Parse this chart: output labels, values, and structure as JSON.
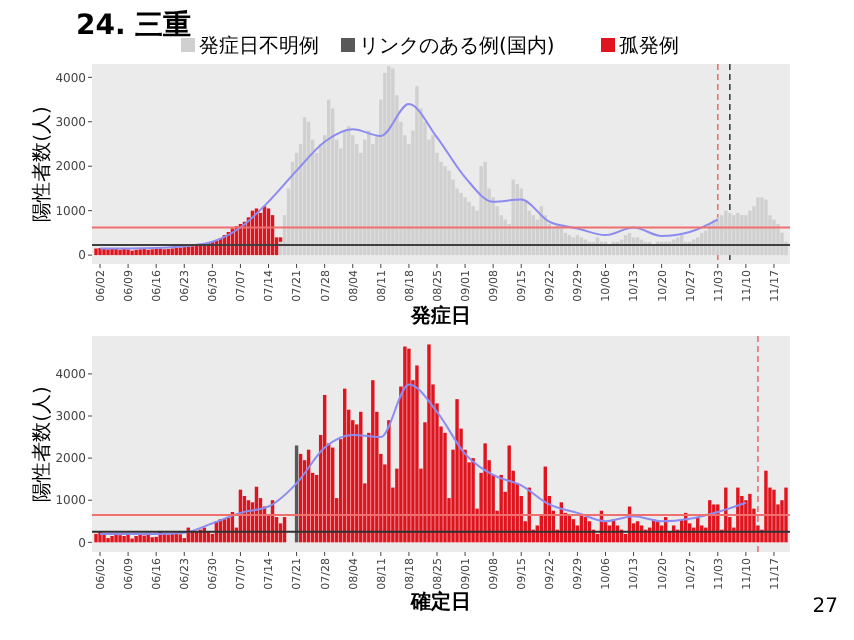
{
  "chart_data": [
    {
      "type": "bar",
      "title": "24. 三重",
      "xlabel": "発症日",
      "ylabel": "陽性者数(人)",
      "stacked": true,
      "legend": "top",
      "x": [
        "--06-01",
        "--06-02",
        "--06-03",
        "--06-04",
        "--06-05",
        "--06-06",
        "--06-07",
        "--06-08",
        "--06-09",
        "--06-10",
        "--06-11",
        "--06-12",
        "--06-13",
        "--06-14",
        "--06-15",
        "--06-16",
        "--06-17",
        "--06-18",
        "--06-19",
        "--06-20",
        "--06-21",
        "--06-22",
        "--06-23",
        "--06-24",
        "--06-25",
        "--06-26",
        "--06-27",
        "--06-28",
        "--06-29",
        "--06-30",
        "--07-01",
        "--07-02",
        "--07-03",
        "--07-04",
        "--07-05",
        "--07-06",
        "--07-07",
        "--07-08",
        "--07-09",
        "--07-10",
        "--07-11",
        "--07-12",
        "--07-13",
        "--07-14",
        "--07-15",
        "--07-16",
        "--07-17",
        "--07-18",
        "--07-19",
        "--07-20",
        "--07-21",
        "--07-22",
        "--07-23",
        "--07-24",
        "--07-25",
        "--07-26",
        "--07-27",
        "--07-28",
        "--07-29",
        "--07-30",
        "--07-31",
        "--08-01",
        "--08-02",
        "--08-03",
        "--08-04",
        "--08-05",
        "--08-06",
        "--08-07",
        "--08-08",
        "--08-09",
        "--08-10",
        "--08-11",
        "--08-12",
        "--08-13",
        "--08-14",
        "--08-15",
        "--08-16",
        "--08-17",
        "--08-18",
        "--08-19",
        "--08-20",
        "--08-21",
        "--08-22",
        "--08-23",
        "--08-24",
        "--08-25",
        "--08-26",
        "--08-27",
        "--08-28",
        "--08-29",
        "--08-30",
        "--08-31",
        "--09-01",
        "--09-02",
        "--09-03",
        "--09-04",
        "--09-05",
        "--09-06",
        "--09-07",
        "--09-08",
        "--09-09",
        "--09-10",
        "--09-11",
        "--09-12",
        "--09-13",
        "--09-14",
        "--09-15",
        "--09-16",
        "--09-17",
        "--09-18",
        "--09-19",
        "--09-20",
        "--09-21",
        "--09-22",
        "--09-23",
        "--09-24",
        "--09-25",
        "--09-26",
        "--09-27",
        "--09-28",
        "--09-29",
        "--09-30",
        "--10-01",
        "--10-02",
        "--10-03",
        "--10-04",
        "--10-05",
        "--10-06",
        "--10-07",
        "--10-08",
        "--10-09",
        "--10-10",
        "--10-11",
        "--10-12",
        "--10-13",
        "--10-14",
        "--10-15",
        "--10-16",
        "--10-17",
        "--10-18",
        "--10-19",
        "--10-20",
        "--10-21",
        "--10-22",
        "--10-23",
        "--10-24",
        "--10-25",
        "--10-26",
        "--10-27",
        "--10-28",
        "--10-29",
        "--10-30",
        "--10-31",
        "--11-01",
        "--11-02",
        "--11-03",
        "--11-04",
        "--11-05",
        "--11-06",
        "--11-07",
        "--11-08",
        "--11-09",
        "--11-10",
        "--11-11",
        "--11-12",
        "--11-13",
        "--11-14",
        "--11-15",
        "--11-16",
        "--11-17",
        "--11-18",
        "--11-19",
        "--11-20"
      ],
      "series": [
        {
          "name": "発症日不明例",
          "color": "#d0d0d0",
          "values": [
            null,
            null,
            null,
            null,
            null,
            null,
            null,
            null,
            null,
            null,
            null,
            null,
            null,
            null,
            null,
            null,
            null,
            null,
            null,
            null,
            null,
            null,
            null,
            null,
            null,
            null,
            null,
            null,
            null,
            null,
            null,
            null,
            null,
            null,
            null,
            null,
            null,
            null,
            null,
            null,
            null,
            null,
            null,
            null,
            null,
            null,
            300,
            900,
            1500,
            2100,
            2300,
            2500,
            3100,
            3000,
            2600,
            2300,
            2500,
            2700,
            3500,
            3300,
            2600,
            2400,
            2800,
            2900,
            2700,
            2500,
            2300,
            2600,
            2800,
            2500,
            2700,
            3500,
            4100,
            4250,
            4200,
            3600,
            3000,
            2700,
            2500,
            2800,
            3800,
            3300,
            3000,
            2600,
            2700,
            2300,
            2100,
            2000,
            1900,
            1700,
            1500,
            1400,
            1300,
            1200,
            1100,
            1000,
            2000,
            2100,
            1500,
            1300,
            1100,
            900,
            800,
            700,
            1700,
            1600,
            1500,
            1200,
            1000,
            900,
            800,
            1100,
            900,
            700,
            600,
            700,
            600,
            500,
            450,
            400,
            450,
            400,
            350,
            300,
            300,
            400,
            300,
            300,
            250,
            300,
            300,
            350,
            450,
            500,
            400,
            400,
            350,
            300,
            300,
            250,
            300,
            300,
            300,
            300,
            350,
            400,
            450,
            300,
            300,
            350,
            400,
            500,
            550,
            700,
            800,
            850,
            900,
            1000,
            950,
            900,
            950,
            900,
            900,
            1000,
            1100,
            1300,
            1300,
            1250,
            900,
            800,
            700,
            500,
            300
          ]
        },
        {
          "name": "孤発例",
          "color": "#e0141e",
          "values": [
            150,
            160,
            140,
            130,
            150,
            140,
            120,
            150,
            130,
            100,
            120,
            130,
            140,
            120,
            130,
            140,
            150,
            130,
            140,
            150,
            160,
            170,
            180,
            190,
            200,
            220,
            240,
            260,
            280,
            300,
            320,
            380,
            450,
            520,
            600,
            650,
            700,
            750,
            850,
            1000,
            1050,
            950,
            1100,
            1050,
            900,
            400,
            100,
            null,
            null,
            null,
            null,
            null,
            null,
            null,
            null,
            null,
            null,
            null,
            null,
            null,
            null,
            null,
            null,
            null,
            null,
            null,
            null,
            null,
            null,
            null,
            null,
            null,
            null,
            null,
            null,
            null,
            null,
            null,
            null,
            null,
            null,
            null,
            null,
            null,
            null,
            null,
            null,
            null,
            null,
            null,
            null,
            null,
            null,
            null,
            null,
            null,
            null,
            null,
            null,
            null,
            null,
            null,
            null,
            null,
            null,
            null,
            null,
            null,
            null,
            null,
            null,
            null,
            null,
            null,
            null,
            null,
            null,
            null,
            null,
            null,
            null,
            null,
            null,
            null,
            null,
            null,
            null,
            null,
            null,
            null,
            null,
            null,
            null,
            null,
            null,
            null,
            null,
            null,
            null,
            null,
            null,
            null,
            null,
            null,
            null,
            null,
            null,
            null,
            null,
            null,
            null,
            null,
            null,
            null,
            null,
            null,
            null,
            null,
            null,
            null,
            null,
            null,
            null,
            null,
            null,
            null,
            null,
            null,
            null,
            null,
            null,
            null,
            null
          ]
        },
        {
          "type": "line",
          "color": "#8c8cf0",
          "x": [
            "--06-02",
            "--06-09",
            "--06-16",
            "--06-23",
            "--06-30",
            "--07-07",
            "--07-14",
            "--07-21",
            "--07-28",
            "--08-04",
            "--08-11",
            "--08-18",
            "--08-25",
            "--09-01",
            "--09-08",
            "--09-15",
            "--09-22",
            "--09-29",
            "--10-06",
            "--10-13",
            "--10-20",
            "--10-27",
            "--11-03"
          ],
          "values": [
            150,
            150,
            160,
            200,
            300,
            620,
            1200,
            1900,
            2550,
            2830,
            2680,
            3400,
            2650,
            1750,
            1200,
            1250,
            750,
            600,
            450,
            620,
            430,
            520,
            800
          ]
        }
      ],
      "xlim": [
        "--05-31",
        "--11-21"
      ],
      "ylim": [
        -200,
        4300
      ],
      "yticks": [
        0,
        1000,
        2000,
        3000,
        4000
      ],
      "xticks": [
        {
          "value": "--06-02",
          "label": "06/02"
        },
        {
          "value": "--06-09",
          "label": "06/09"
        },
        {
          "value": "--06-16",
          "label": "06/16"
        },
        {
          "value": "--06-23",
          "label": "06/23"
        },
        {
          "value": "--06-30",
          "label": "06/30"
        },
        {
          "value": "--07-07",
          "label": "07/07"
        },
        {
          "value": "--07-14",
          "label": "07/14"
        },
        {
          "value": "--07-21",
          "label": "07/21"
        },
        {
          "value": "--07-28",
          "label": "07/28"
        },
        {
          "value": "--08-04",
          "label": "08/04"
        },
        {
          "value": "--08-11",
          "label": "08/11"
        },
        {
          "value": "--08-18",
          "label": "08/18"
        },
        {
          "value": "--08-25",
          "label": "08/25"
        },
        {
          "value": "--09-01",
          "label": "09/01"
        },
        {
          "value": "--09-08",
          "label": "09/08"
        },
        {
          "value": "--09-15",
          "label": "09/15"
        },
        {
          "value": "--09-22",
          "label": "09/22"
        },
        {
          "value": "--09-29",
          "label": "09/29"
        },
        {
          "value": "--10-06",
          "label": "10/06"
        },
        {
          "value": "--10-13",
          "label": "10/13"
        },
        {
          "value": "--10-20",
          "label": "10/20"
        },
        {
          "value": "--10-27",
          "label": "10/27"
        },
        {
          "value": "--11-03",
          "label": "11/03"
        },
        {
          "value": "--11-10",
          "label": "11/10"
        },
        {
          "value": "--11-17",
          "label": "11/17"
        }
      ],
      "ref_lines": [
        {
          "axis": "y",
          "value": 620,
          "color": "#f07070"
        },
        {
          "axis": "y",
          "value": 230,
          "color": "#404040"
        },
        {
          "axis": "x",
          "value": "--11-03",
          "color": "#f07070",
          "line_style": "dashed"
        },
        {
          "axis": "x",
          "value": "--11-06",
          "color": "#404040",
          "line_style": "dashed"
        }
      ]
    },
    {
      "type": "bar",
      "xlabel": "確定日",
      "ylabel": "陽性者数(人)",
      "stacked": true,
      "annotations": [
        "27"
      ],
      "x": [
        "--06-01",
        "--06-02",
        "--06-03",
        "--06-04",
        "--06-05",
        "--06-06",
        "--06-07",
        "--06-08",
        "--06-09",
        "--06-10",
        "--06-11",
        "--06-12",
        "--06-13",
        "--06-14",
        "--06-15",
        "--06-16",
        "--06-17",
        "--06-18",
        "--06-19",
        "--06-20",
        "--06-21",
        "--06-22",
        "--06-23",
        "--06-24",
        "--06-25",
        "--06-26",
        "--06-27",
        "--06-28",
        "--06-29",
        "--06-30",
        "--07-01",
        "--07-02",
        "--07-03",
        "--07-04",
        "--07-05",
        "--07-06",
        "--07-07",
        "--07-08",
        "--07-09",
        "--07-10",
        "--07-11",
        "--07-12",
        "--07-13",
        "--07-14",
        "--07-15",
        "--07-16",
        "--07-17",
        "--07-18",
        "--07-19",
        "--07-20",
        "--07-21",
        "--07-22",
        "--07-23",
        "--07-24",
        "--07-25",
        "--07-26",
        "--07-27",
        "--07-28",
        "--07-29",
        "--07-30",
        "--07-31",
        "--08-01",
        "--08-02",
        "--08-03",
        "--08-04",
        "--08-05",
        "--08-06",
        "--08-07",
        "--08-08",
        "--08-09",
        "--08-10",
        "--08-11",
        "--08-12",
        "--08-13",
        "--08-14",
        "--08-15",
        "--08-16",
        "--08-17",
        "--08-18",
        "--08-19",
        "--08-20",
        "--08-21",
        "--08-22",
        "--08-23",
        "--08-24",
        "--08-25",
        "--08-26",
        "--08-27",
        "--08-28",
        "--08-29",
        "--08-30",
        "--08-31",
        "--09-01",
        "--09-02",
        "--09-03",
        "--09-04",
        "--09-05",
        "--09-06",
        "--09-07",
        "--09-08",
        "--09-09",
        "--09-10",
        "--09-11",
        "--09-12",
        "--09-13",
        "--09-14",
        "--09-15",
        "--09-16",
        "--09-17",
        "--09-18",
        "--09-19",
        "--09-20",
        "--09-21",
        "--09-22",
        "--09-23",
        "--09-24",
        "--09-25",
        "--09-26",
        "--09-27",
        "--09-28",
        "--09-29",
        "--09-30",
        "--10-01",
        "--10-02",
        "--10-03",
        "--10-04",
        "--10-05",
        "--10-06",
        "--10-07",
        "--10-08",
        "--10-09",
        "--10-10",
        "--10-11",
        "--10-12",
        "--10-13",
        "--10-14",
        "--10-15",
        "--10-16",
        "--10-17",
        "--10-18",
        "--10-19",
        "--10-20",
        "--10-21",
        "--10-22",
        "--10-23",
        "--10-24",
        "--10-25",
        "--10-26",
        "--10-27",
        "--10-28",
        "--10-29",
        "--10-30",
        "--10-31",
        "--11-01",
        "--11-02",
        "--11-03",
        "--11-04",
        "--11-05",
        "--11-06",
        "--11-07",
        "--11-08",
        "--11-09",
        "--11-10",
        "--11-11",
        "--11-12",
        "--11-13",
        "--11-14",
        "--11-15",
        "--11-16",
        "--11-17",
        "--11-18",
        "--11-19",
        "--11-20"
      ],
      "series": [
        {
          "name": "リンクのある例(国内)",
          "color": "#595959",
          "values": [
            null,
            null,
            null,
            null,
            null,
            null,
            null,
            null,
            null,
            null,
            null,
            null,
            null,
            null,
            null,
            null,
            null,
            null,
            null,
            null,
            null,
            null,
            null,
            null,
            null,
            null,
            null,
            null,
            null,
            null,
            null,
            null,
            null,
            null,
            null,
            null,
            null,
            null,
            null,
            null,
            null,
            null,
            null,
            null,
            null,
            null,
            null,
            null,
            null,
            null,
            2300,
            null,
            null,
            null,
            null,
            null,
            null,
            null,
            null,
            null,
            null,
            null,
            null,
            null,
            null,
            null,
            null,
            null,
            null,
            null,
            null,
            null,
            null,
            null,
            null,
            null,
            null,
            null,
            null,
            null,
            null,
            null,
            null,
            null,
            null,
            null,
            null,
            null,
            null,
            null,
            null,
            null,
            null,
            null,
            null,
            null,
            null,
            null,
            null,
            null,
            null,
            null,
            null,
            null,
            null,
            null,
            null,
            null,
            null,
            null,
            null,
            null,
            null,
            null,
            null,
            null,
            null,
            null,
            null,
            null,
            null,
            null,
            null,
            null,
            null,
            null,
            null,
            null,
            null,
            null,
            null,
            null,
            null,
            null,
            null,
            null,
            null,
            null,
            null,
            null,
            null,
            null,
            null,
            null,
            null,
            null,
            null,
            null,
            null,
            null,
            null,
            null,
            null,
            null,
            null,
            null,
            null,
            null,
            null,
            null,
            null,
            null,
            null,
            null,
            null,
            null,
            null,
            null,
            null,
            null,
            null,
            null,
            null
          ]
        },
        {
          "name": "孤発例",
          "color": "#e0141e",
          "values": [
            200,
            250,
            180,
            100,
            150,
            200,
            170,
            150,
            180,
            90,
            150,
            200,
            160,
            180,
            120,
            130,
            250,
            200,
            180,
            200,
            210,
            190,
            100,
            350,
            250,
            250,
            300,
            350,
            250,
            200,
            500,
            550,
            550,
            580,
            720,
            350,
            1250,
            1100,
            1000,
            950,
            1320,
            1050,
            850,
            650,
            1000,
            600,
            450,
            600,
            0,
            0,
            null,
            2100,
            1950,
            2200,
            1650,
            1600,
            2550,
            3500,
            2350,
            2250,
            1050,
            2450,
            3650,
            3150,
            2900,
            2800,
            3100,
            1400,
            2600,
            3850,
            3100,
            2100,
            1850,
            2900,
            1300,
            1750,
            3700,
            4650,
            4600,
            3850,
            4200,
            1750,
            2850,
            4700,
            3750,
            3300,
            2750,
            2600,
            1050,
            2200,
            3400,
            2700,
            2200,
            1900,
            2000,
            800,
            1650,
            2350,
            1950,
            1600,
            750,
            1600,
            1200,
            2300,
            1700,
            1400,
            1100,
            500,
            1300,
            300,
            400,
            650,
            1800,
            1100,
            750,
            300,
            950,
            700,
            650,
            550,
            400,
            650,
            600,
            500,
            300,
            200,
            750,
            500,
            400,
            550,
            400,
            300,
            200,
            850,
            450,
            500,
            400,
            300,
            350,
            550,
            500,
            400,
            600,
            250,
            400,
            300,
            550,
            700,
            450,
            350,
            600,
            400,
            350,
            1000,
            900,
            900,
            300,
            1300,
            600,
            350,
            1300,
            1100,
            1000,
            1150,
            800,
            400,
            300,
            1700,
            1300,
            1250,
            900,
            1000,
            1300
          ]
        },
        {
          "type": "line",
          "color": "#8c8cf0",
          "x": [
            "--06-02",
            "--06-09",
            "--06-16",
            "--06-23",
            "--06-30",
            "--07-07",
            "--07-14",
            "--07-21",
            "--07-28",
            "--08-04",
            "--08-11",
            "--08-18",
            "--08-25",
            "--09-01",
            "--09-08",
            "--09-15",
            "--09-22",
            "--09-29",
            "--10-06",
            "--10-13",
            "--10-20",
            "--10-27",
            "--11-03",
            "--11-10"
          ],
          "values": [
            200,
            200,
            200,
            230,
            450,
            700,
            850,
            1400,
            2250,
            2550,
            2500,
            3750,
            3100,
            2100,
            1600,
            1350,
            900,
            700,
            500,
            620,
            500,
            560,
            720,
            940
          ]
        }
      ],
      "xlim": [
        "--05-31",
        "--11-21"
      ],
      "ylim": [
        -230,
        4900
      ],
      "yticks": [
        0,
        1000,
        2000,
        3000,
        4000
      ],
      "xticks": [
        {
          "value": "--06-02",
          "label": "06/02"
        },
        {
          "value": "--06-09",
          "label": "06/09"
        },
        {
          "value": "--06-16",
          "label": "06/16"
        },
        {
          "value": "--06-23",
          "label": "06/23"
        },
        {
          "value": "--06-30",
          "label": "06/30"
        },
        {
          "value": "--07-07",
          "label": "07/07"
        },
        {
          "value": "--07-14",
          "label": "07/14"
        },
        {
          "value": "--07-21",
          "label": "07/21"
        },
        {
          "value": "--07-28",
          "label": "07/28"
        },
        {
          "value": "--08-04",
          "label": "08/04"
        },
        {
          "value": "--08-11",
          "label": "08/11"
        },
        {
          "value": "--08-18",
          "label": "08/18"
        },
        {
          "value": "--08-25",
          "label": "08/25"
        },
        {
          "value": "--09-01",
          "label": "09/01"
        },
        {
          "value": "--09-08",
          "label": "09/08"
        },
        {
          "value": "--09-15",
          "label": "09/15"
        },
        {
          "value": "--09-22",
          "label": "09/22"
        },
        {
          "value": "--09-29",
          "label": "09/29"
        },
        {
          "value": "--10-06",
          "label": "10/06"
        },
        {
          "value": "--10-13",
          "label": "10/13"
        },
        {
          "value": "--10-20",
          "label": "10/20"
        },
        {
          "value": "--10-27",
          "label": "10/27"
        },
        {
          "value": "--11-03",
          "label": "11/03"
        },
        {
          "value": "--11-10",
          "label": "11/10"
        },
        {
          "value": "--11-17",
          "label": "11/17"
        }
      ],
      "ref_lines": [
        {
          "axis": "y",
          "value": 650,
          "color": "#f07070"
        },
        {
          "axis": "y",
          "value": 250,
          "color": "#303030"
        },
        {
          "axis": "x",
          "value": "--11-13",
          "color": "#f07070",
          "line_style": "dashed"
        }
      ]
    }
  ]
}
